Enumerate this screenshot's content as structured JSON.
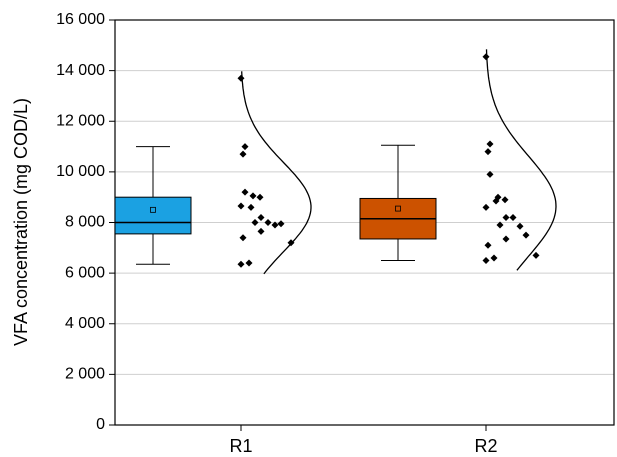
{
  "chart_data": {
    "type": "box",
    "y_label": "VFA concentration (mg COD/L)",
    "categories": [
      "R1",
      "R2"
    ],
    "ylim": [
      0,
      16000
    ],
    "yticks": [
      0,
      {
        "value": 2000,
        "label": "2 000"
      },
      {
        "value": 4000,
        "label": "4 000"
      },
      {
        "value": 6000,
        "label": "6 000"
      },
      {
        "value": 8000,
        "label": "8 000"
      },
      {
        "value": 10000,
        "label": "10 000"
      },
      {
        "value": 12000,
        "label": "12 000"
      },
      {
        "value": 14000,
        "label": "14 000"
      },
      {
        "value": 16000,
        "label": "16 000"
      }
    ],
    "grid": true,
    "series": [
      {
        "color": "#1ba1e2",
        "whisker_low": 6350,
        "q1": 7550,
        "median": 8000,
        "q3": 9000,
        "whisker_high": 11000,
        "mean": 8500,
        "points": [
          13700,
          11000,
          10700,
          9200,
          9050,
          9000,
          8600,
          8650,
          8200,
          8000,
          7900,
          8000,
          7950,
          7650,
          7400,
          7200,
          6400,
          6350
        ]
      },
      {
        "color": "#cc5200",
        "whisker_low": 6500,
        "q1": 7350,
        "median": 8150,
        "q3": 8950,
        "whisker_high": 11050,
        "mean": 8550,
        "points": [
          14550,
          11100,
          10800,
          9900,
          9000,
          8900,
          8850,
          8600,
          8200,
          8200,
          7850,
          7900,
          7500,
          7350,
          7100,
          6700,
          6600,
          6500
        ]
      }
    ]
  }
}
